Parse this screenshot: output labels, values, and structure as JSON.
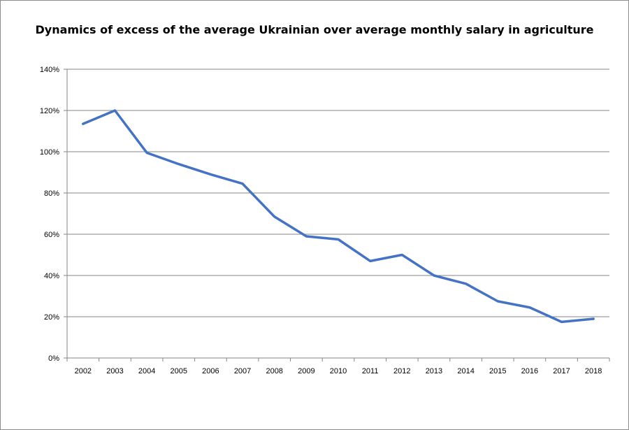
{
  "chart_data": {
    "type": "line",
    "title": "Dynamics of excess  of the average Ukrainian over average monthly salary in agriculture",
    "xlabel": "",
    "ylabel": "",
    "x": [
      "2002",
      "2003",
      "2004",
      "2005",
      "2006",
      "2007",
      "2008",
      "2009",
      "2010",
      "2011",
      "2012",
      "2013",
      "2014",
      "2015",
      "2016",
      "2017",
      "2018"
    ],
    "series": [
      {
        "values": [
          113.5,
          120,
          99.5,
          94,
          89,
          84.5,
          68.5,
          59,
          57.5,
          47,
          50,
          40,
          36,
          27.5,
          24.5,
          17.5,
          19
        ],
        "color": "#4472c4"
      }
    ],
    "ylim": [
      0,
      140
    ],
    "yticks": [
      0,
      20,
      40,
      60,
      80,
      100,
      120,
      140
    ],
    "ytick_labels": [
      "0%",
      "20%",
      "40%",
      "60%",
      "80%",
      "100%",
      "120%",
      "140%"
    ],
    "grid": true,
    "legend": "none"
  }
}
